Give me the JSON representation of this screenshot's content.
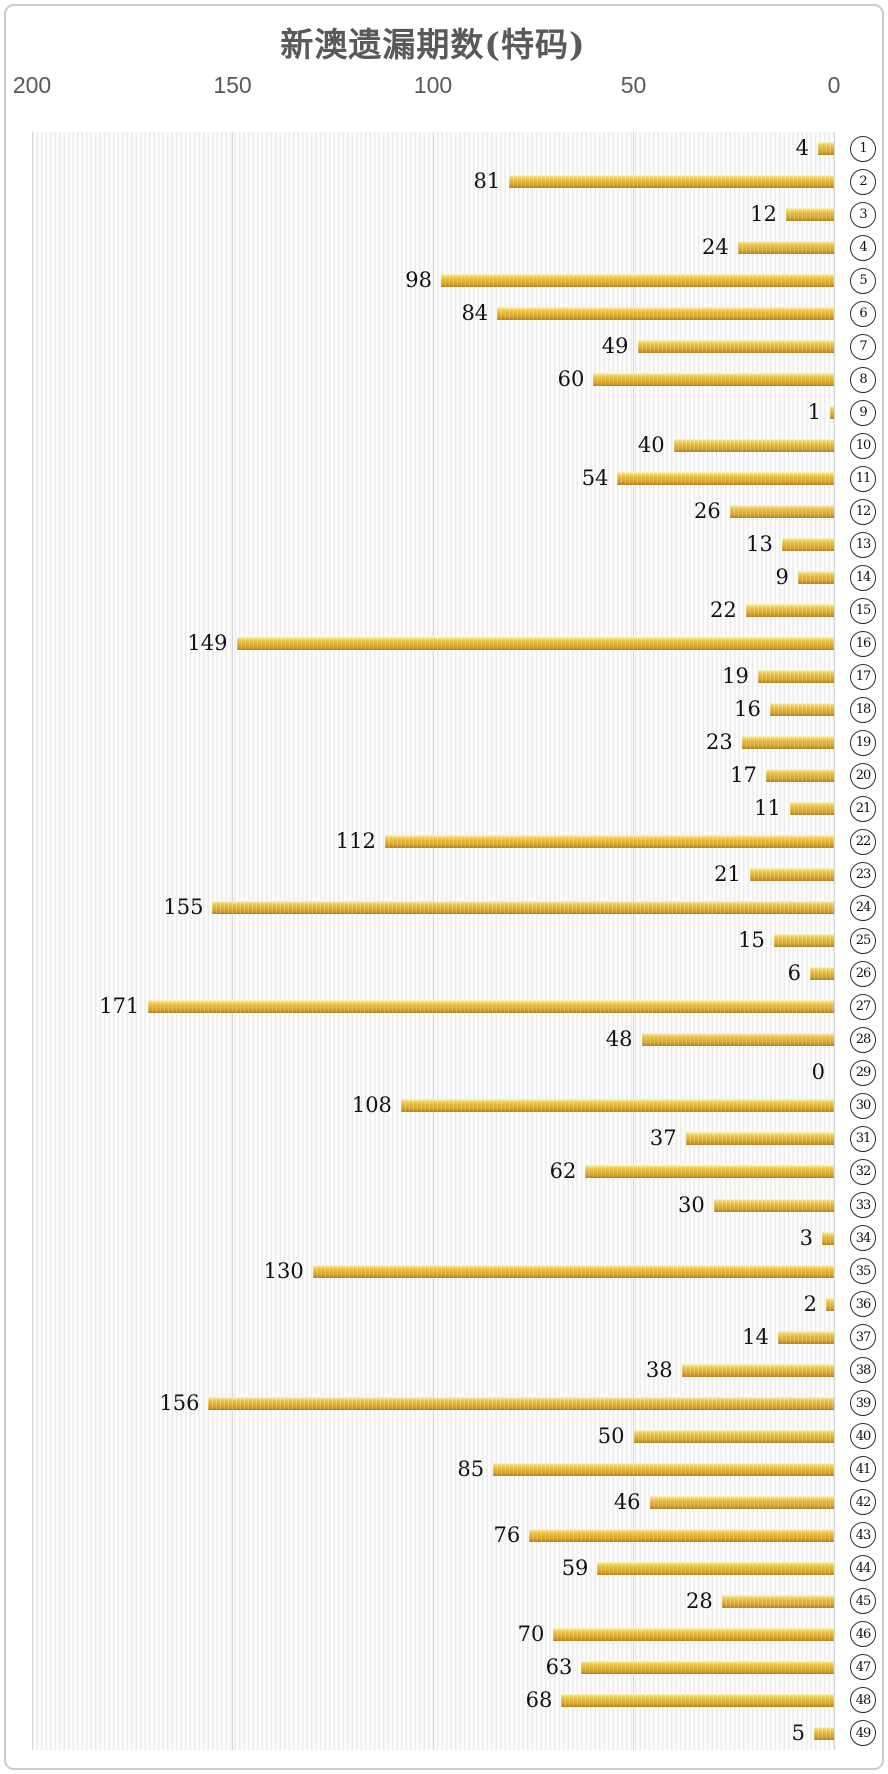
{
  "chart_data": {
    "type": "bar",
    "orientation": "horizontal",
    "title": "新澳遗漏期数(特码)",
    "legend": "none",
    "grid": "vertical",
    "value_labels": "outside-end",
    "category_style": "circled-number",
    "categories": [
      "1",
      "2",
      "3",
      "4",
      "5",
      "6",
      "7",
      "8",
      "9",
      "10",
      "11",
      "12",
      "13",
      "14",
      "15",
      "16",
      "17",
      "18",
      "19",
      "20",
      "21",
      "22",
      "23",
      "24",
      "25",
      "26",
      "27",
      "28",
      "29",
      "30",
      "31",
      "32",
      "33",
      "34",
      "35",
      "36",
      "37",
      "38",
      "39",
      "40",
      "41",
      "42",
      "43",
      "44",
      "45",
      "46",
      "47",
      "48",
      "49"
    ],
    "values": [
      4,
      81,
      12,
      24,
      98,
      84,
      49,
      60,
      1,
      40,
      54,
      26,
      13,
      9,
      22,
      149,
      19,
      16,
      23,
      17,
      11,
      112,
      21,
      155,
      15,
      6,
      171,
      48,
      0,
      108,
      37,
      62,
      30,
      3,
      130,
      2,
      14,
      38,
      156,
      50,
      85,
      46,
      76,
      59,
      28,
      70,
      63,
      68,
      5
    ],
    "x_axis": {
      "position": "top",
      "reversed": true,
      "min": 0,
      "max": 200,
      "ticks": [
        200,
        150,
        100,
        50,
        0
      ]
    },
    "colors": {
      "bar": "#E2B335",
      "bar_top": "#FDF6D0",
      "bar_bottom": "#B08018",
      "title_text": "#595959",
      "axis_text": "#595959",
      "value_text": "#111111",
      "gridline": "#D6D6D6",
      "stripe": "#ECECEC",
      "border": "#C9CDD2"
    }
  }
}
